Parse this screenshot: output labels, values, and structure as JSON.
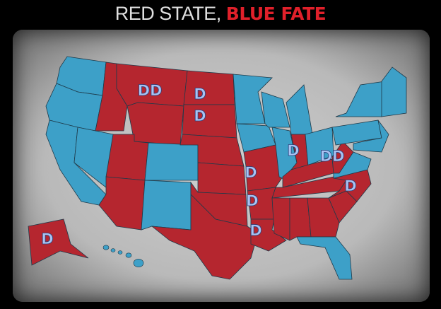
{
  "title": {
    "part1": "RED STATE, ",
    "part2": "BLUE FATE"
  },
  "colors": {
    "red": "#b5262f",
    "blue": "#3da0c8",
    "label": "#a9c3f2",
    "border": "#1e3a4a"
  },
  "states": {
    "WA": "blue",
    "OR": "blue",
    "CA": "blue",
    "NV": "blue",
    "ID": "red",
    "MT": "red",
    "WY": "red",
    "UT": "red",
    "AZ": "red",
    "CO": "blue",
    "NM": "blue",
    "ND": "red",
    "SD": "red",
    "NE": "red",
    "KS": "red",
    "OK": "red",
    "TX": "red",
    "MN": "blue",
    "IA": "blue",
    "MO": "red",
    "WI": "blue",
    "IL": "blue",
    "MI": "blue",
    "IN": "red",
    "OH": "blue",
    "KY": "red",
    "TN": "red",
    "AR": "red",
    "LA": "red",
    "MS": "red",
    "AL": "red",
    "GA": "red",
    "FL": "blue",
    "SC": "red",
    "NC": "red",
    "VA": "blue",
    "WV": "red",
    "PA": "blue",
    "NY": "blue",
    "NE_REGION": "blue",
    "MIDATL": "blue",
    "AK": "red",
    "HI": "blue"
  },
  "labels": [
    {
      "state": "MT",
      "text": "DD"
    },
    {
      "state": "ND",
      "text": "D"
    },
    {
      "state": "SD",
      "text": "D"
    },
    {
      "state": "IN",
      "text": "D"
    },
    {
      "state": "WV",
      "text": "DD"
    },
    {
      "state": "MO",
      "text": "D"
    },
    {
      "state": "NC",
      "text": "D"
    },
    {
      "state": "AR",
      "text": "D"
    },
    {
      "state": "LA",
      "text": "D"
    },
    {
      "state": "AK",
      "text": "D"
    }
  ]
}
